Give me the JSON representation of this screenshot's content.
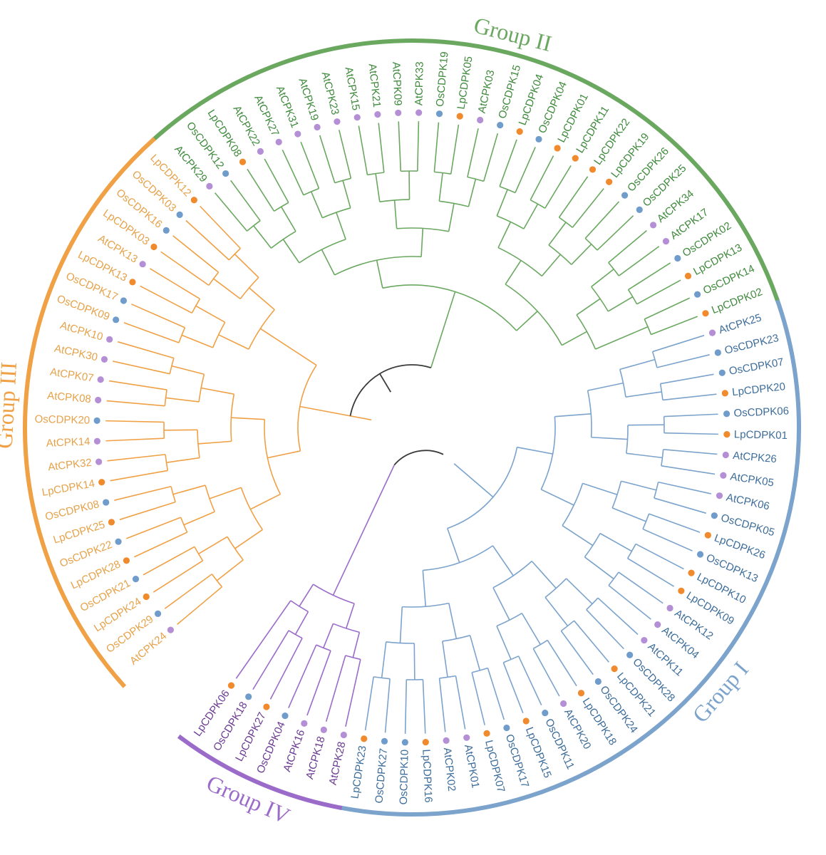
{
  "colors": {
    "I": "#7ba3cc",
    "II": "#6aa860",
    "III": "#f0a045",
    "IV": "#9b6bc9",
    "root": "#3a3a3a",
    "species_Lp": "#f08a2c",
    "species_Os": "#6f9ccb",
    "species_At": "#b58fd6",
    "labels_I": "#3d6d9a",
    "labels_II": "#3f8a3c",
    "labels_III": "#e6a24a",
    "labels_IV": "#6a3a92"
  },
  "groups": [
    {
      "id": "I",
      "title": "Group I",
      "color_key": "I"
    },
    {
      "id": "II",
      "title": "Group II",
      "color_key": "II"
    },
    {
      "id": "III",
      "title": "Group III",
      "color_key": "III"
    },
    {
      "id": "IV",
      "title": "Group IV",
      "color_key": "IV"
    }
  ],
  "leaves": [
    {
      "name": "AtCPK24",
      "group": "III"
    },
    {
      "name": "OsCDPK29",
      "group": "III"
    },
    {
      "name": "LpCDPK24",
      "group": "III"
    },
    {
      "name": "OsCDPK21",
      "group": "III"
    },
    {
      "name": "LpCDPK28",
      "group": "III"
    },
    {
      "name": "OsCDPK22",
      "group": "III"
    },
    {
      "name": "LpCDPK25",
      "group": "III"
    },
    {
      "name": "OsCDPK08",
      "group": "III"
    },
    {
      "name": "LpCDPK14",
      "group": "III"
    },
    {
      "name": "AtCPK32",
      "group": "III"
    },
    {
      "name": "AtCPK14",
      "group": "III"
    },
    {
      "name": "OsCDPK20",
      "group": "III"
    },
    {
      "name": "AtCPK08",
      "group": "III"
    },
    {
      "name": "AtCPK07",
      "group": "III"
    },
    {
      "name": "AtCPK30",
      "group": "III"
    },
    {
      "name": "AtCPK10",
      "group": "III"
    },
    {
      "name": "OsCDPK09",
      "group": "III"
    },
    {
      "name": "OsCDPK17",
      "group": "III"
    },
    {
      "name": "LpCDPK13",
      "group": "III"
    },
    {
      "name": "AtCPK13",
      "group": "III"
    },
    {
      "name": "LpCDPK03",
      "group": "III"
    },
    {
      "name": "OsCDPK16",
      "group": "III"
    },
    {
      "name": "OsCDPK03",
      "group": "III"
    },
    {
      "name": "LpCDPK12",
      "group": "III"
    },
    {
      "name": "AtCPK29",
      "group": "II"
    },
    {
      "name": "OsCDPK12",
      "group": "II"
    },
    {
      "name": "LpCDPK08",
      "group": "II"
    },
    {
      "name": "AtCPK22",
      "group": "II"
    },
    {
      "name": "AtCPK27",
      "group": "II"
    },
    {
      "name": "AtCPK31",
      "group": "II"
    },
    {
      "name": "AtCPK19",
      "group": "II"
    },
    {
      "name": "AtCPK23",
      "group": "II"
    },
    {
      "name": "AtCPK15",
      "group": "II"
    },
    {
      "name": "AtCPK21",
      "group": "II"
    },
    {
      "name": "AtCPK09",
      "group": "II"
    },
    {
      "name": "AtCPK33",
      "group": "II"
    },
    {
      "name": "OsCDPK19",
      "group": "II"
    },
    {
      "name": "LpCDPK05",
      "group": "II"
    },
    {
      "name": "AtCPK03",
      "group": "II"
    },
    {
      "name": "OsCDPK15",
      "group": "II"
    },
    {
      "name": "LpCDPK04",
      "group": "II"
    },
    {
      "name": "OsCDPK04",
      "group": "II"
    },
    {
      "name": "LpCDPK01",
      "group": "II"
    },
    {
      "name": "LpCDPK11",
      "group": "II"
    },
    {
      "name": "LpCDPK22",
      "group": "II"
    },
    {
      "name": "LpCDPK19",
      "group": "II"
    },
    {
      "name": "OsCDPK26",
      "group": "II"
    },
    {
      "name": "OsCDPK25",
      "group": "II"
    },
    {
      "name": "AtCPK34",
      "group": "II"
    },
    {
      "name": "AtCPK17",
      "group": "II"
    },
    {
      "name": "OsCDPK02",
      "group": "II"
    },
    {
      "name": "LpCDPK13",
      "group": "II"
    },
    {
      "name": "OsCDPK14",
      "group": "II"
    },
    {
      "name": "LpCDPK02",
      "group": "II"
    },
    {
      "name": "AtCPK25",
      "group": "I"
    },
    {
      "name": "OsCDPK23",
      "group": "I"
    },
    {
      "name": "OsCDPK07",
      "group": "I"
    },
    {
      "name": "LpCDPK20",
      "group": "I"
    },
    {
      "name": "OsCDPK06",
      "group": "I"
    },
    {
      "name": "LpCDPK01",
      "group": "I"
    },
    {
      "name": "AtCPK26",
      "group": "I"
    },
    {
      "name": "AtCPK05",
      "group": "I"
    },
    {
      "name": "AtCPK06",
      "group": "I"
    },
    {
      "name": "OsCDPK05",
      "group": "I"
    },
    {
      "name": "LpCDPK26",
      "group": "I"
    },
    {
      "name": "OsCDPK13",
      "group": "I"
    },
    {
      "name": "LpCDPK10",
      "group": "I"
    },
    {
      "name": "LpCDPK09",
      "group": "I"
    },
    {
      "name": "AtCPK12",
      "group": "I"
    },
    {
      "name": "AtCPK04",
      "group": "I"
    },
    {
      "name": "AtCPK11",
      "group": "I"
    },
    {
      "name": "OsCDPK28",
      "group": "I"
    },
    {
      "name": "LpCDPK21",
      "group": "I"
    },
    {
      "name": "OsCDPK24",
      "group": "I"
    },
    {
      "name": "LpCDPK18",
      "group": "I"
    },
    {
      "name": "AtCPK20",
      "group": "I"
    },
    {
      "name": "OsCDPK11",
      "group": "I"
    },
    {
      "name": "LpCDPK15",
      "group": "I"
    },
    {
      "name": "OsCDPK17",
      "group": "I"
    },
    {
      "name": "LpCDPK07",
      "group": "I"
    },
    {
      "name": "AtCPK01",
      "group": "I"
    },
    {
      "name": "AtCPK02",
      "group": "I"
    },
    {
      "name": "LpCDPK16",
      "group": "I"
    },
    {
      "name": "OsCDPK10",
      "group": "I"
    },
    {
      "name": "OsCDPK27",
      "group": "I"
    },
    {
      "name": "LpCDPK23",
      "group": "I"
    },
    {
      "name": "AtCPK28",
      "group": "IV"
    },
    {
      "name": "AtCPK18",
      "group": "IV"
    },
    {
      "name": "AtCPK16",
      "group": "IV"
    },
    {
      "name": "OsCDPK04",
      "group": "IV"
    },
    {
      "name": "LpCDPK27",
      "group": "IV"
    },
    {
      "name": "OsCDPK18",
      "group": "IV"
    },
    {
      "name": "LpCDPK06",
      "group": "IV"
    }
  ]
}
